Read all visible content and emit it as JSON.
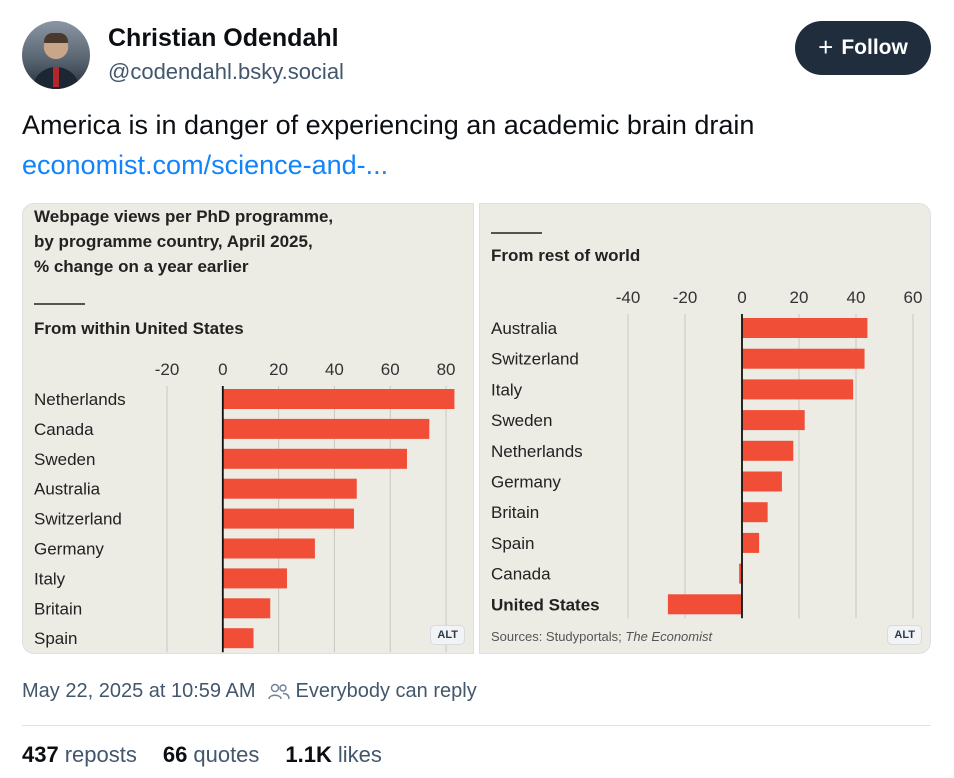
{
  "author": {
    "name": "Christian Odendahl",
    "handle": "@codendahl.bsky.social"
  },
  "follow_button": {
    "label": "Follow",
    "icon": "plus-icon"
  },
  "post": {
    "text": "America is in danger of experiencing an academic brain drain",
    "link_text": "economist.com/science-and-..."
  },
  "images": [
    {
      "alt_badge": "ALT"
    },
    {
      "alt_badge": "ALT"
    }
  ],
  "chart_data": [
    {
      "type": "bar",
      "orientation": "horizontal",
      "title_lines": [
        "Webpage views per PhD programme,",
        "by programme country, April 2025,",
        "% change on a year earlier"
      ],
      "subtitle": "From within United States",
      "categories": [
        "Netherlands",
        "Canada",
        "Sweden",
        "Australia",
        "Switzerland",
        "Germany",
        "Italy",
        "Britain",
        "Spain"
      ],
      "values": [
        83,
        74,
        66,
        48,
        47,
        33,
        23,
        17,
        11
      ],
      "xlim": [
        -20,
        85
      ],
      "ticks": [
        -20,
        0,
        20,
        40,
        60,
        80
      ],
      "tick_labels": [
        "-20",
        "0",
        "20",
        "40",
        "60",
        "80"
      ],
      "bar_color": "#f04e37"
    },
    {
      "type": "bar",
      "orientation": "horizontal",
      "subtitle": "From rest of world",
      "categories": [
        "Australia",
        "Switzerland",
        "Italy",
        "Sweden",
        "Netherlands",
        "Germany",
        "Britain",
        "Spain",
        "Canada",
        "United States"
      ],
      "bold_categories": [
        "United States"
      ],
      "values": [
        44,
        43,
        39,
        22,
        18,
        14,
        9,
        6,
        -1,
        -26
      ],
      "xlim": [
        -40,
        60
      ],
      "ticks": [
        -40,
        -20,
        0,
        20,
        40,
        60
      ],
      "tick_labels": [
        "-40",
        "-20",
        "0",
        "20",
        "40",
        "60"
      ],
      "source_prefix": "Sources: Studyportals; ",
      "source_italic": "The Economist",
      "bar_color": "#f04e37"
    }
  ],
  "meta": {
    "timestamp": "May 22, 2025 at 10:59 AM",
    "reply_setting": "Everybody can reply"
  },
  "stats": {
    "reposts_count": "437",
    "reposts_label": "reposts",
    "quotes_count": "66",
    "quotes_label": "quotes",
    "likes_count": "1.1K",
    "likes_label": "likes"
  }
}
